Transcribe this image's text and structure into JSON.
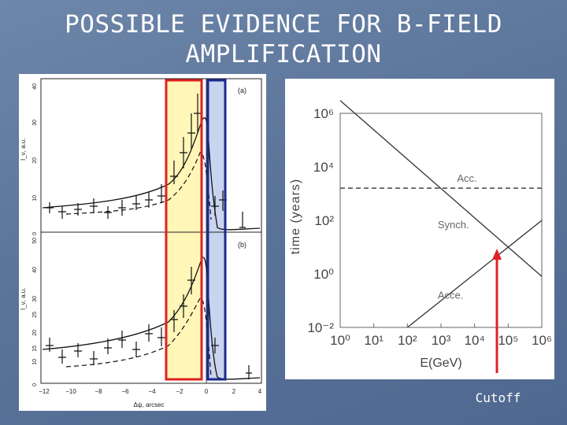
{
  "slide": {
    "title_line1": "POSSIBLE EVIDENCE FOR B-FIELD",
    "title_line2": "AMPLIFICATION",
    "cutoff_label": "Cutoff"
  },
  "left_figure": {
    "panel_a_label": "(a)",
    "panel_b_label": "(b)",
    "ylabel_top": "I_ν, a.u.",
    "ylabel_bottom": "I_ν, a.u.",
    "xlabel": "Δψ, arcsec",
    "top_yticks": [
      "0",
      "10",
      "20",
      "30",
      "40"
    ],
    "bottom_yticks": [
      "0",
      "10",
      "15",
      "20",
      "25",
      "30",
      "40",
      "50"
    ],
    "xticks": [
      "−12",
      "−10",
      "−8",
      "−6",
      "−4",
      "−2",
      "0",
      "2",
      "4"
    ],
    "highlight_red": "#e02020",
    "highlight_blue": "#1a2a90",
    "highlight_fill_yellow": "#fff6b8",
    "highlight_fill_blue": "#c9d4ee"
  },
  "chart_data": {
    "type": "line",
    "xlabel": "E(GeV)",
    "ylabel": "time (years)",
    "xscale": "log",
    "yscale": "log",
    "xlim": [
      1,
      1000000
    ],
    "ylim": [
      0.01,
      1000000
    ],
    "xtick_labels": [
      "10⁰",
      "10¹",
      "10²",
      "10³",
      "10⁴",
      "10⁵",
      "10⁶"
    ],
    "ytick_labels": [
      "10⁻²",
      "10⁰",
      "10²",
      "10⁴",
      "10⁶"
    ],
    "series": [
      {
        "name": "Acc.",
        "style": "dashed",
        "x": [
          1,
          1000000
        ],
        "y": [
          1600,
          1600
        ]
      },
      {
        "name": "Synch.",
        "style": "solid",
        "x": [
          1,
          1000000
        ],
        "y": [
          3000000,
          0.8
        ]
      },
      {
        "name": "Acce.",
        "style": "solid",
        "x": [
          100,
          1000000
        ],
        "y": [
          0.01,
          100
        ]
      }
    ],
    "annotation": {
      "text": "Cutoff",
      "x": 60000,
      "y": 0.7
    }
  }
}
